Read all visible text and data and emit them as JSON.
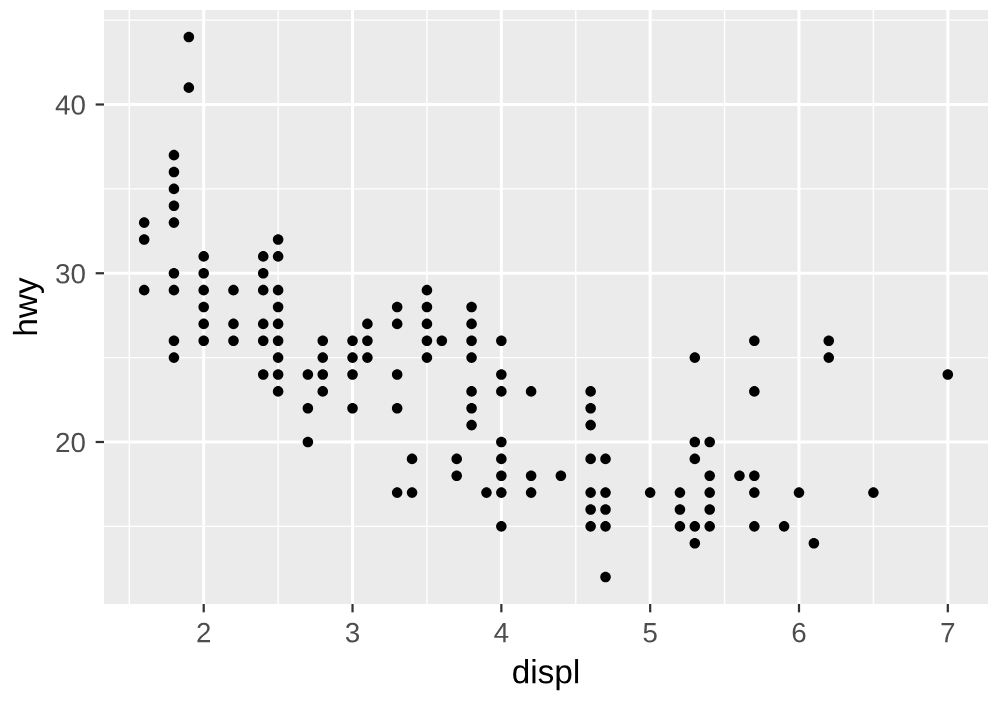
{
  "chart_data": {
    "type": "scatter",
    "xlabel": "displ",
    "ylabel": "hwy",
    "xlim": [
      1.33,
      7.27
    ],
    "ylim": [
      10.4,
      45.6
    ],
    "xticks": [
      2,
      3,
      4,
      5,
      6,
      7
    ],
    "yticks": [
      20,
      30,
      40
    ],
    "grid": true,
    "marker": "circle",
    "series": [
      {
        "color": "#000000",
        "x": [
          1.6,
          1.6,
          1.6,
          1.8,
          1.8,
          1.8,
          1.8,
          1.8,
          1.8,
          1.8,
          1.8,
          1.8,
          1.9,
          1.9,
          2.0,
          2.0,
          2.0,
          2.0,
          2.0,
          2.0,
          2.2,
          2.2,
          2.2,
          2.4,
          2.4,
          2.4,
          2.4,
          2.4,
          2.4,
          2.5,
          2.5,
          2.5,
          2.5,
          2.5,
          2.5,
          2.5,
          2.5,
          2.5,
          2.7,
          2.7,
          2.7,
          2.8,
          2.8,
          2.8,
          2.8,
          3.0,
          3.0,
          3.0,
          3.0,
          3.1,
          3.1,
          3.1,
          3.3,
          3.3,
          3.3,
          3.3,
          3.3,
          3.4,
          3.4,
          3.5,
          3.5,
          3.5,
          3.5,
          3.5,
          3.6,
          3.7,
          3.7,
          3.8,
          3.8,
          3.8,
          3.8,
          3.8,
          3.8,
          3.8,
          3.9,
          4.0,
          4.0,
          4.0,
          4.0,
          4.0,
          4.0,
          4.0,
          4.0,
          4.2,
          4.2,
          4.2,
          4.4,
          4.6,
          4.6,
          4.6,
          4.6,
          4.6,
          4.6,
          4.6,
          4.7,
          4.7,
          4.7,
          4.7,
          4.7,
          5.0,
          5.2,
          5.2,
          5.2,
          5.3,
          5.3,
          5.3,
          5.3,
          5.3,
          5.4,
          5.4,
          5.4,
          5.4,
          5.4,
          5.6,
          5.7,
          5.7,
          5.7,
          5.7,
          5.7,
          5.9,
          6.0,
          6.1,
          6.2,
          6.2,
          6.5,
          7.0
        ],
        "values": [
          33,
          32,
          29,
          37,
          36,
          35,
          34,
          33,
          30,
          29,
          26,
          25,
          44,
          41,
          31,
          30,
          29,
          28,
          27,
          26,
          29,
          27,
          26,
          31,
          30,
          29,
          27,
          26,
          24,
          32,
          31,
          29,
          28,
          27,
          26,
          25,
          24,
          23,
          24,
          22,
          20,
          26,
          25,
          24,
          23,
          26,
          25,
          24,
          22,
          27,
          26,
          25,
          28,
          27,
          24,
          22,
          17,
          19,
          17,
          29,
          28,
          27,
          26,
          25,
          26,
          19,
          18,
          28,
          27,
          26,
          25,
          23,
          22,
          21,
          17,
          26,
          24,
          23,
          20,
          19,
          18,
          17,
          15,
          23,
          18,
          17,
          18,
          23,
          22,
          21,
          19,
          17,
          16,
          15,
          19,
          17,
          16,
          15,
          12,
          17,
          17,
          16,
          15,
          25,
          20,
          19,
          15,
          14,
          20,
          18,
          17,
          16,
          15,
          18,
          26,
          23,
          18,
          17,
          15,
          15,
          17,
          14,
          26,
          25,
          17,
          24
        ]
      }
    ]
  }
}
